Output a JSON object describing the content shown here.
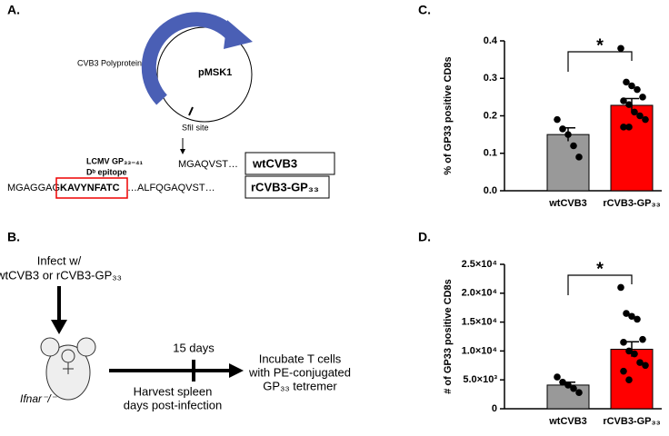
{
  "panels": {
    "a": {
      "letter": "A.",
      "polyprotein": "CVB3 Polyprotein",
      "plasmid": "pMSK1",
      "site": "SfiI site",
      "epitope1": "LCMV GP₃₃₋₄₁",
      "epitope2": "Dᵇ epitope",
      "seq_wt": "MGAQVST…",
      "name_wt": "wtCVB3",
      "seq_r1": "MGAGGAG",
      "seq_r2": "KAVYNFATC",
      "seq_r3": "…ALFQGAQVST…",
      "name_r": "rCVB3-GP₃₃"
    },
    "b": {
      "letter": "B.",
      "infect1": "Infect w/",
      "infect2": "wtCVB3 or rCVB3-GP₃₃",
      "mouse": "Ifnar⁻/⁻",
      "days": "15 days",
      "harvest1": "Harvest spleen",
      "harvest2": "days post-infection",
      "incubate1": "Incubate T cells",
      "incubate2": "with PE-conjugated",
      "incubate3": "GP₃₃ tetremer"
    },
    "c": {
      "letter": "C."
    },
    "d": {
      "letter": "D."
    }
  },
  "chart_data": [
    {
      "type": "bar",
      "ylabel": "% of GP33 positive CD8s",
      "categories": [
        "wtCVB3",
        "rCVB3-GP₃₃"
      ],
      "values": [
        0.15,
        0.228
      ],
      "errors": [
        0.018,
        0.018
      ],
      "colors": [
        "#999999",
        "#ff0000"
      ],
      "points": [
        [
          0.19,
          0.165,
          0.15,
          0.12,
          0.09
        ],
        [
          0.38,
          0.29,
          0.28,
          0.27,
          0.25,
          0.24,
          0.23,
          0.21,
          0.2,
          0.19,
          0.17,
          0.17
        ]
      ],
      "ylim": [
        0,
        0.4
      ],
      "yticks": [
        {
          "value": 0,
          "label": "0.0"
        },
        0.1,
        0.2,
        0.3,
        0.4
      ],
      "annotation": "*"
    },
    {
      "type": "bar",
      "ylabel": "# of GP33 positive CD8s",
      "categories": [
        "wtCVB3",
        "rCVB3-GP₃₃"
      ],
      "values": [
        4100,
        10300
      ],
      "errors": [
        500,
        1300
      ],
      "colors": [
        "#999999",
        "#ff0000"
      ],
      "points": [
        [
          5500,
          4600,
          4100,
          3500,
          2800
        ],
        [
          21000,
          16500,
          16000,
          15500,
          12000,
          11500,
          10000,
          9500,
          8000,
          7500,
          6500,
          5000
        ]
      ],
      "ylim": [
        0,
        25000
      ],
      "yticks": [
        0,
        {
          "value": 5000,
          "label": "5.0×10³"
        },
        {
          "value": 10000,
          "label": "1.0×10⁴"
        },
        {
          "value": 15000,
          "label": "1.5×10⁴"
        },
        {
          "value": 20000,
          "label": "2.0×10⁴"
        },
        {
          "value": 25000,
          "label": "2.5×10⁴"
        }
      ],
      "annotation": "*"
    }
  ]
}
